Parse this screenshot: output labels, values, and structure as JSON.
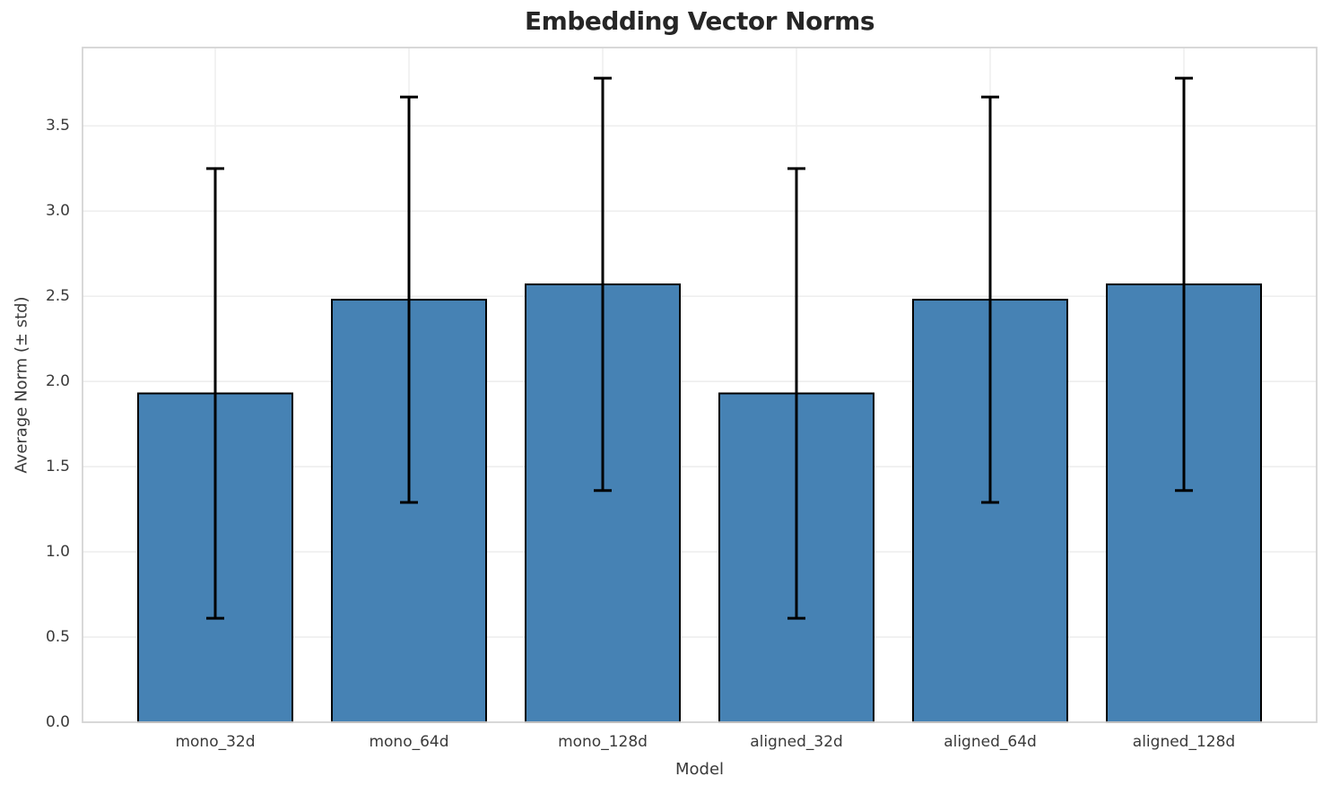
{
  "chart_data": {
    "type": "bar",
    "title": "Embedding Vector Norms",
    "xlabel": "Model",
    "ylabel": "Average Norm (± std)",
    "categories": [
      "mono_32d",
      "mono_64d",
      "mono_128d",
      "aligned_32d",
      "aligned_64d",
      "aligned_128d"
    ],
    "series": [
      {
        "name": "Average Norm",
        "values": [
          1.93,
          2.48,
          2.57,
          1.93,
          2.48,
          2.57
        ],
        "errors": [
          1.32,
          1.19,
          1.21,
          1.32,
          1.19,
          1.21
        ]
      }
    ],
    "error_upper": [
      3.25,
      3.67,
      3.78,
      3.25,
      3.67,
      3.78
    ],
    "error_lower": [
      0.61,
      1.29,
      1.36,
      0.61,
      1.29,
      1.36
    ],
    "ylim": [
      0,
      3.96
    ],
    "yticks": [
      0.0,
      0.5,
      1.0,
      1.5,
      2.0,
      2.5,
      3.0,
      3.5
    ],
    "ytick_labels": [
      "0.0",
      "0.5",
      "1.0",
      "1.5",
      "2.0",
      "2.5",
      "3.0",
      "3.5"
    ],
    "grid": true,
    "legend_position": "none",
    "colors": {
      "bar_fill": "#4682b4",
      "bar_edge": "#000000",
      "error_bar": "#000000",
      "grid_line": "#eeeeee",
      "spine": "#d4d4d4",
      "title_text": "#262626",
      "tick_text": "#3a3a3a",
      "background": "#ffffff"
    }
  }
}
